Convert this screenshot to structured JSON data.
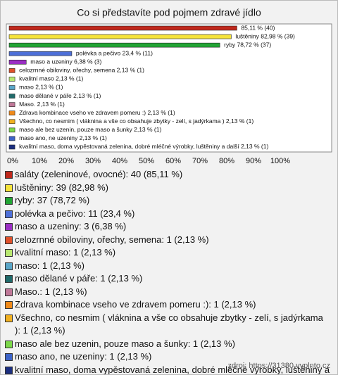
{
  "chart_data": {
    "type": "bar",
    "orientation": "horizontal",
    "title": "Co si představíte pod pojmem zdravé jídlo",
    "categories": [
      "saláty (zeleninové, ovocné): 40 (85,11 %)",
      "luštěniny: 39 (82,98 %)",
      "ryby: 37 (78,72 %)",
      "polévka a pečivo: 11 (23,4 %)",
      "maso a uzeniny: 3 (6,38 %)",
      "celozrnné obiloviny, ořechy, semena: 1 (2,13 %)",
      "kvalitní maso: 1 (2,13 %)",
      "maso: 1 (2,13 %)",
      "maso dělané v páře: 1 (2,13 %)",
      "Maso.: 1 (2,13 %)",
      "Zdrava kombinace vseho ve zdravem pomeru :): 1 (2,13 %)",
      "Všechno, co nesmim ( vláknina a vše co obsahuje zbytky - zelí, s jadýrkama ): 1 (2,13 %)",
      "maso ale bez uzenin, pouze maso a šunky: 1 (2,13 %)",
      "maso ano, ne uzeniny: 1 (2,13 %)",
      "kvalitní maso, doma vypěstovaná zelenina, dobré mléčné výrobky, luštěniny a další: 1 (2,13 %)"
    ],
    "values": [
      85.11,
      82.98,
      78.72,
      23.4,
      6.38,
      2.13,
      2.13,
      2.13,
      2.13,
      2.13,
      2.13,
      2.13,
      2.13,
      2.13,
      2.13
    ],
    "value_labels": [
      "85,11 % (40)",
      "luštěniny 82,98 % (39)",
      "ryby 78,72 % (37)",
      "polévka a pečivo 23,4 % (11)",
      "maso a uzeniny 6,38 % (3)",
      "celozrnné obiloviny, ořechy, semena 2,13 % (1)",
      "kvalitní maso 2,13 % (1)",
      "maso 2,13 % (1)",
      "maso dělané v páře 2,13 % (1)",
      "Maso. 2,13 % (1)",
      "Zdrava kombinace vseho ve zdravem pomeru :) 2,13 % (1)",
      "Všechno, co nesmim ( vláknina a vše co obsahuje zbytky - zelí, s jadýrkama ) 2,13 % (1)",
      "maso ale bez uzenin, pouze maso a šunky 2,13 % (1)",
      "maso ano, ne uzeniny 2,13 % (1)",
      "kvalitní maso, doma vypěstovaná zelenina, dobré mléčné výrobky, luštěniny a další 2,13 % (1)"
    ],
    "colors": [
      "#c0281c",
      "#f5e33a",
      "#22a535",
      "#4d6fd8",
      "#9b2fc4",
      "#e0502a",
      "#b8e870",
      "#5aa6c8",
      "#1f6a6a",
      "#c07898",
      "#f08a1a",
      "#f0b020",
      "#7cd84a",
      "#3c63c8",
      "#1c2f80"
    ],
    "xlim": [
      0,
      100
    ],
    "xticks": [
      {
        "value": 0,
        "label": "0%"
      },
      {
        "value": 10,
        "label": "10%"
      },
      {
        "value": 20,
        "label": "20%"
      },
      {
        "value": 30,
        "label": "30%"
      },
      {
        "value": 40,
        "label": "40%"
      },
      {
        "value": 50,
        "label": "50%"
      },
      {
        "value": 60,
        "label": "60%"
      },
      {
        "value": 70,
        "label": "70%"
      },
      {
        "value": 80,
        "label": "80%"
      },
      {
        "value": 90,
        "label": "90%"
      },
      {
        "value": 100,
        "label": "100%"
      }
    ],
    "source": "zdroj: https://31380.vyplnto.cz"
  }
}
